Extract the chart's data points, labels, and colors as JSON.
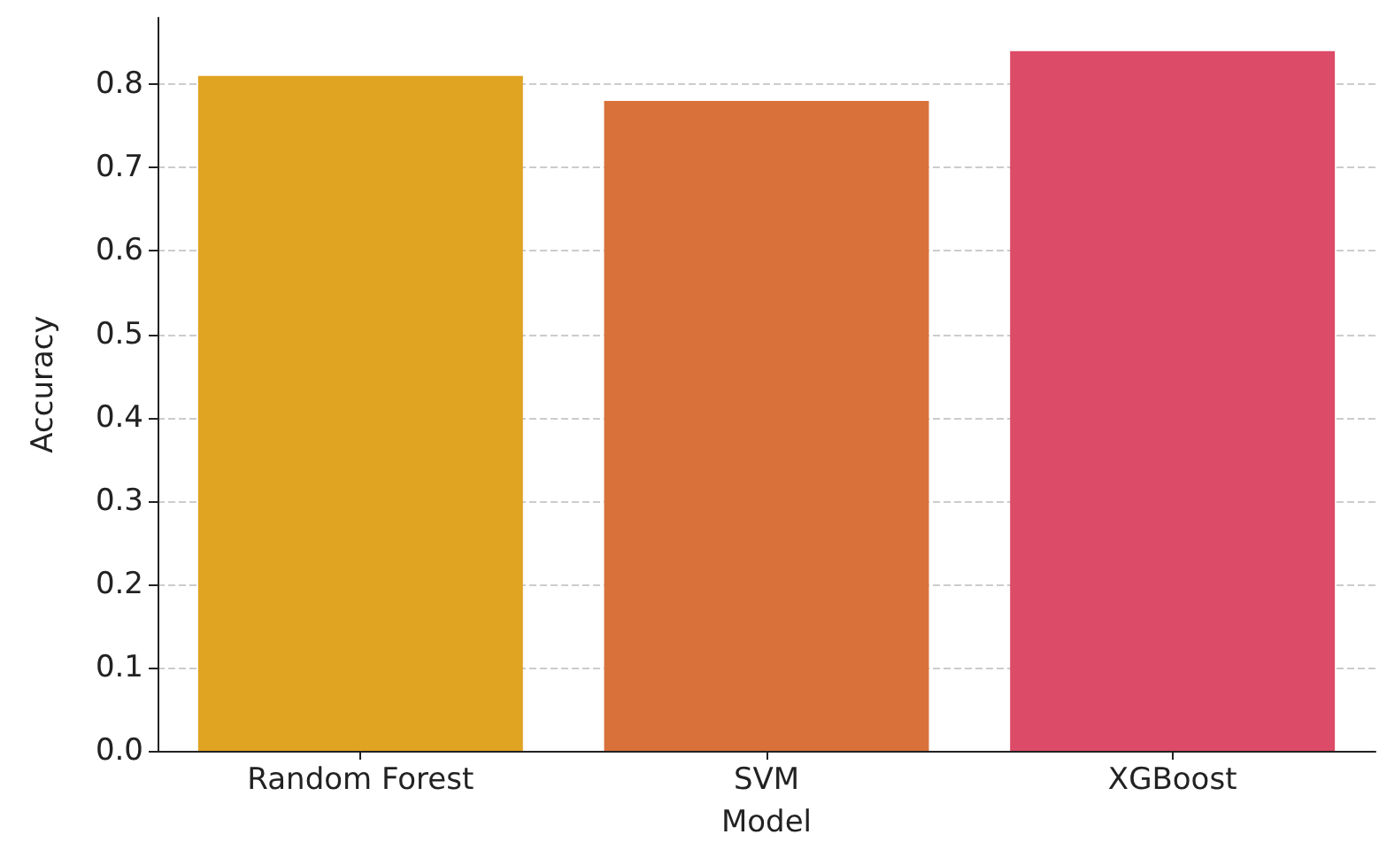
{
  "chart_data": {
    "type": "bar",
    "xlabel": "Model",
    "ylabel": "Accuracy",
    "categories": [
      "Random Forest",
      "SVM",
      "XGBoost"
    ],
    "values": [
      0.81,
      0.78,
      0.84
    ],
    "colors": [
      "#e0a322",
      "#d9713b",
      "#dc4b67"
    ],
    "ylim": [
      0,
      0.88
    ],
    "yticks": [
      {
        "value": 0,
        "label": "0.0"
      },
      0.1,
      0.2,
      0.3,
      0.4,
      0.5,
      0.6,
      0.7,
      0.8
    ],
    "grid": "y"
  }
}
